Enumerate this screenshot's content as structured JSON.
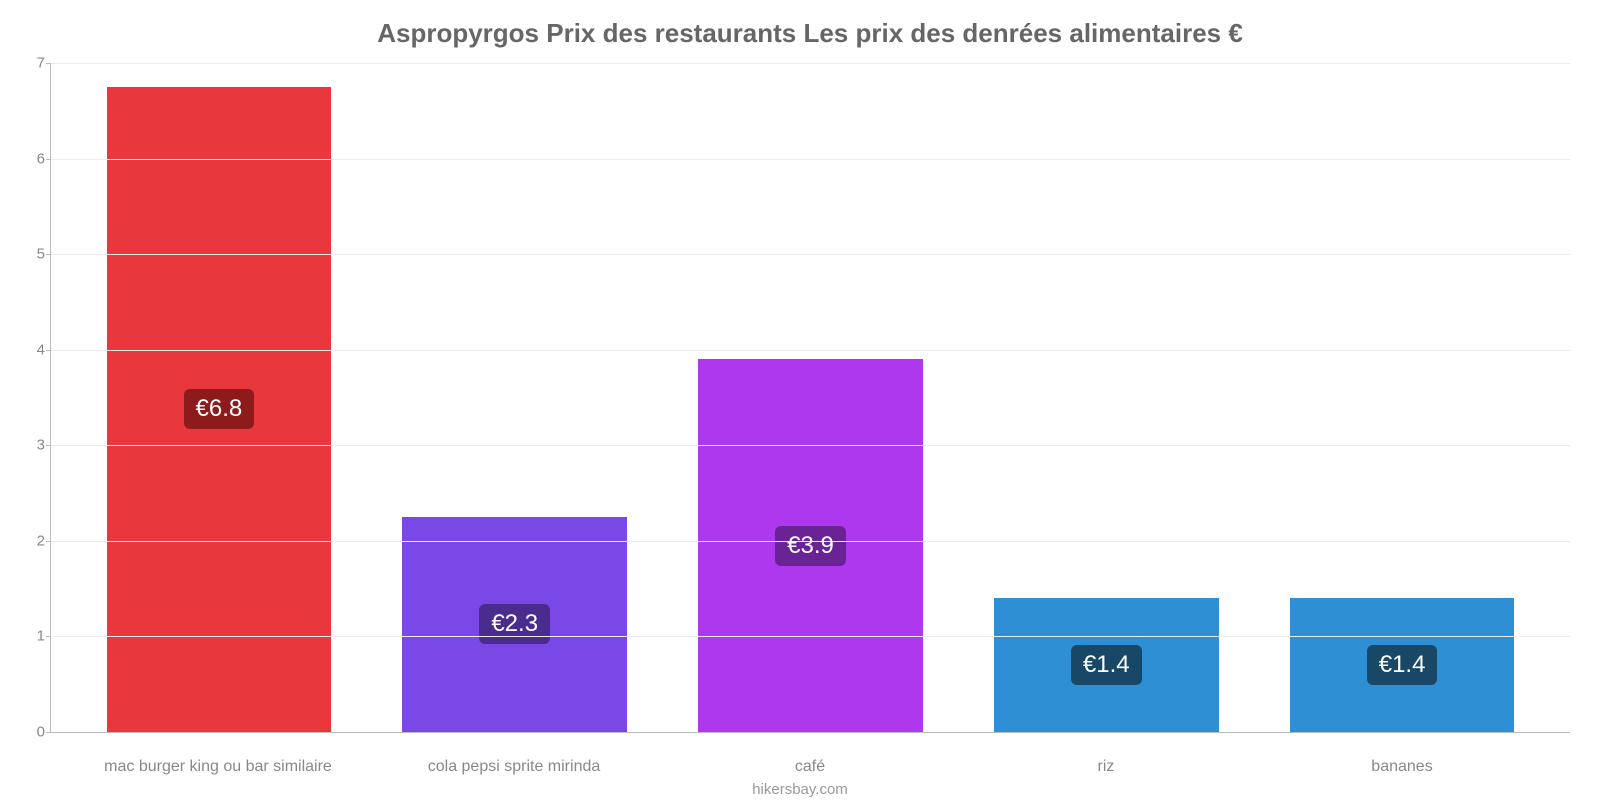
{
  "chart": {
    "type": "bar",
    "title": "Aspropyrgos Prix des restaurants Les prix des denrées alimentaires €",
    "title_color": "#666666",
    "title_fontsize": 26,
    "background_color": "#ffffff",
    "grid_color": "#ececec",
    "axis_color": "#bbbbbb",
    "tick_color": "#888888",
    "label_fontsize": 16,
    "ylim": [
      0,
      7
    ],
    "ytick_step": 1,
    "yticks": [
      0,
      1,
      2,
      3,
      4,
      5,
      6,
      7
    ],
    "bar_width": 0.76,
    "categories": [
      "mac burger king ou bar similaire",
      "cola pepsi sprite mirinda",
      "café",
      "riz",
      "bananes"
    ],
    "values": [
      6.75,
      2.25,
      3.9,
      1.4,
      1.4
    ],
    "value_labels": [
      "€6.8",
      "€2.3",
      "€3.9",
      "€1.4",
      "€1.4"
    ],
    "bar_colors": [
      "#e8373d",
      "#7a48e6",
      "#ae38ed",
      "#2f8fd4",
      "#2f8fd4"
    ],
    "badge_colors": [
      "#8d1b1c",
      "#4a2c8f",
      "#6a2394",
      "#184865",
      "#184865"
    ],
    "badge_text_color": "#ffffff",
    "badge_fontsize": 24,
    "credit": "hikersbay.com",
    "credit_color": "#999999"
  }
}
